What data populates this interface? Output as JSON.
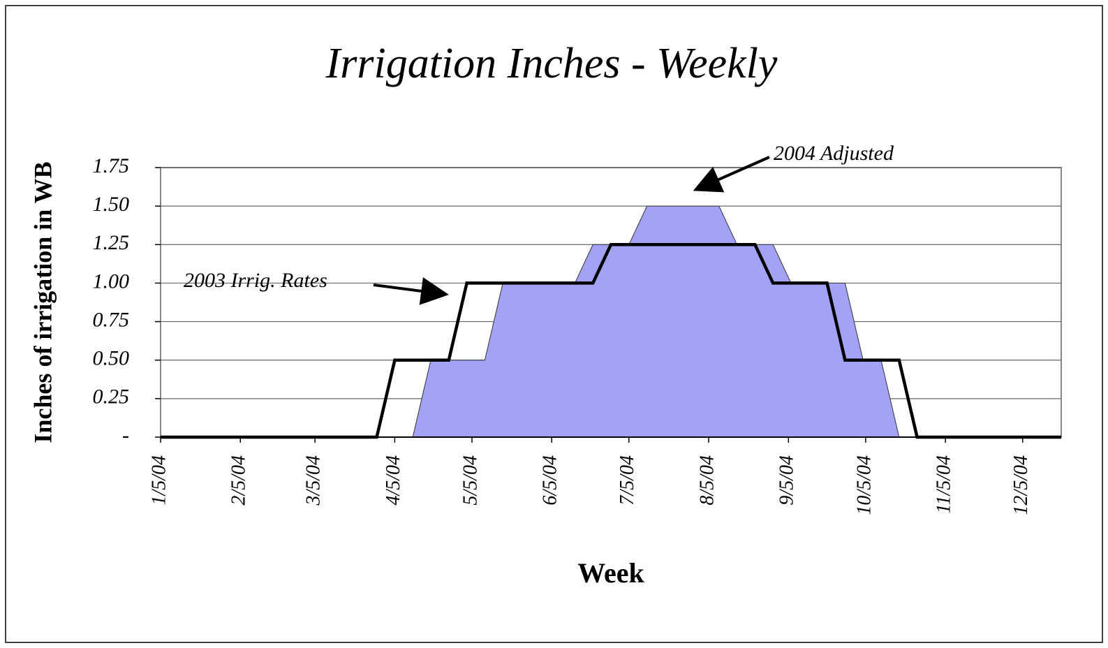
{
  "chart_data": {
    "type": "area",
    "title": "Irrigation Inches - Weekly",
    "xlabel": "Week",
    "ylabel": "Inches of irrigation in WB",
    "x": [
      "2004-01-05",
      "2004-01-12",
      "2004-01-19",
      "2004-01-26",
      "2004-02-02",
      "2004-02-09",
      "2004-02-16",
      "2004-02-23",
      "2004-03-01",
      "2004-03-08",
      "2004-03-15",
      "2004-03-22",
      "2004-03-29",
      "2004-04-05",
      "2004-04-12",
      "2004-04-19",
      "2004-04-26",
      "2004-05-03",
      "2004-05-10",
      "2004-05-17",
      "2004-05-24",
      "2004-05-31",
      "2004-06-07",
      "2004-06-14",
      "2004-06-21",
      "2004-06-28",
      "2004-07-05",
      "2004-07-12",
      "2004-07-19",
      "2004-07-26",
      "2004-08-02",
      "2004-08-09",
      "2004-08-16",
      "2004-08-23",
      "2004-08-30",
      "2004-09-06",
      "2004-09-13",
      "2004-09-20",
      "2004-09-27",
      "2004-10-04",
      "2004-10-11",
      "2004-10-18",
      "2004-10-25",
      "2004-11-01",
      "2004-11-08",
      "2004-11-15",
      "2004-11-22",
      "2004-11-29",
      "2004-12-06",
      "2004-12-13",
      "2004-12-20"
    ],
    "series": [
      {
        "name": "2004 Adjusted",
        "type": "area",
        "color": "#a3a3f5",
        "values": [
          0,
          0,
          0,
          0,
          0,
          0,
          0,
          0,
          0,
          0,
          0,
          0,
          0,
          0,
          0,
          0.5,
          0.5,
          0.5,
          0.5,
          1,
          1,
          1,
          1,
          1,
          1.25,
          1.25,
          1.25,
          1.5,
          1.5,
          1.5,
          1.5,
          1.5,
          1.25,
          1.25,
          1.25,
          1,
          1,
          1,
          1,
          0.5,
          0.5,
          0,
          0,
          0,
          0,
          0,
          0,
          0,
          0,
          0,
          0
        ]
      },
      {
        "name": "2003 Irrig. Rates",
        "type": "line",
        "color": "#000000",
        "values": [
          0,
          0,
          0,
          0,
          0,
          0,
          0,
          0,
          0,
          0,
          0,
          0,
          0,
          0.5,
          0.5,
          0.5,
          0.5,
          1,
          1,
          1,
          1,
          1,
          1,
          1,
          1,
          1.25,
          1.25,
          1.25,
          1.25,
          1.25,
          1.25,
          1.25,
          1.25,
          1.25,
          1,
          1,
          1,
          1,
          0.5,
          0.5,
          0.5,
          0.5,
          0,
          0,
          0,
          0,
          0,
          0,
          0,
          0,
          0
        ]
      }
    ],
    "xlim": [
      "2004-01-05",
      "2004-12-20"
    ],
    "xticks": [
      {
        "value": "2004-01-05",
        "label": "1/5/04"
      },
      {
        "value": "2004-02-05",
        "label": "2/5/04"
      },
      {
        "value": "2004-03-05",
        "label": "3/5/04"
      },
      {
        "value": "2004-04-05",
        "label": "4/5/04"
      },
      {
        "value": "2004-05-05",
        "label": "5/5/04"
      },
      {
        "value": "2004-06-05",
        "label": "6/5/04"
      },
      {
        "value": "2004-07-05",
        "label": "7/5/04"
      },
      {
        "value": "2004-08-05",
        "label": "8/5/04"
      },
      {
        "value": "2004-09-05",
        "label": "9/5/04"
      },
      {
        "value": "2004-10-05",
        "label": "10/5/04"
      },
      {
        "value": "2004-11-05",
        "label": "11/5/04"
      },
      {
        "value": "2004-12-05",
        "label": "12/5/04"
      }
    ],
    "ylim": [
      0,
      1.75
    ],
    "yticks": [
      {
        "value": 0,
        "label": "-"
      },
      0.25,
      {
        "value": 0.5,
        "label": "0.50"
      },
      0.75,
      {
        "value": 1,
        "label": "1.00"
      },
      1.25,
      {
        "value": 1.5,
        "label": "1.50"
      },
      1.75
    ],
    "grid": true
  }
}
